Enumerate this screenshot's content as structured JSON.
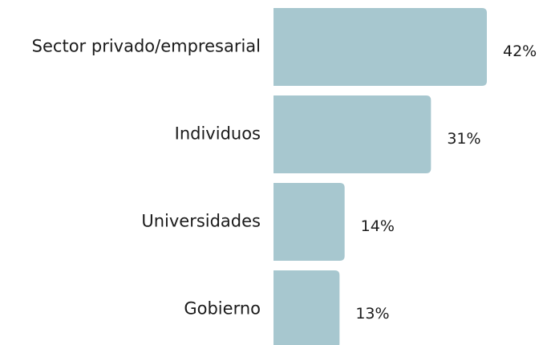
{
  "chart_data": {
    "type": "bar",
    "orientation": "horizontal",
    "categories": [
      "Sector privado/empresarial",
      "Individuos",
      "Universidades",
      "Gobierno"
    ],
    "values": [
      42,
      31,
      14,
      13
    ],
    "value_labels": [
      "42%",
      "31%",
      "14%",
      "13%"
    ],
    "color": "#a7c7cf"
  }
}
